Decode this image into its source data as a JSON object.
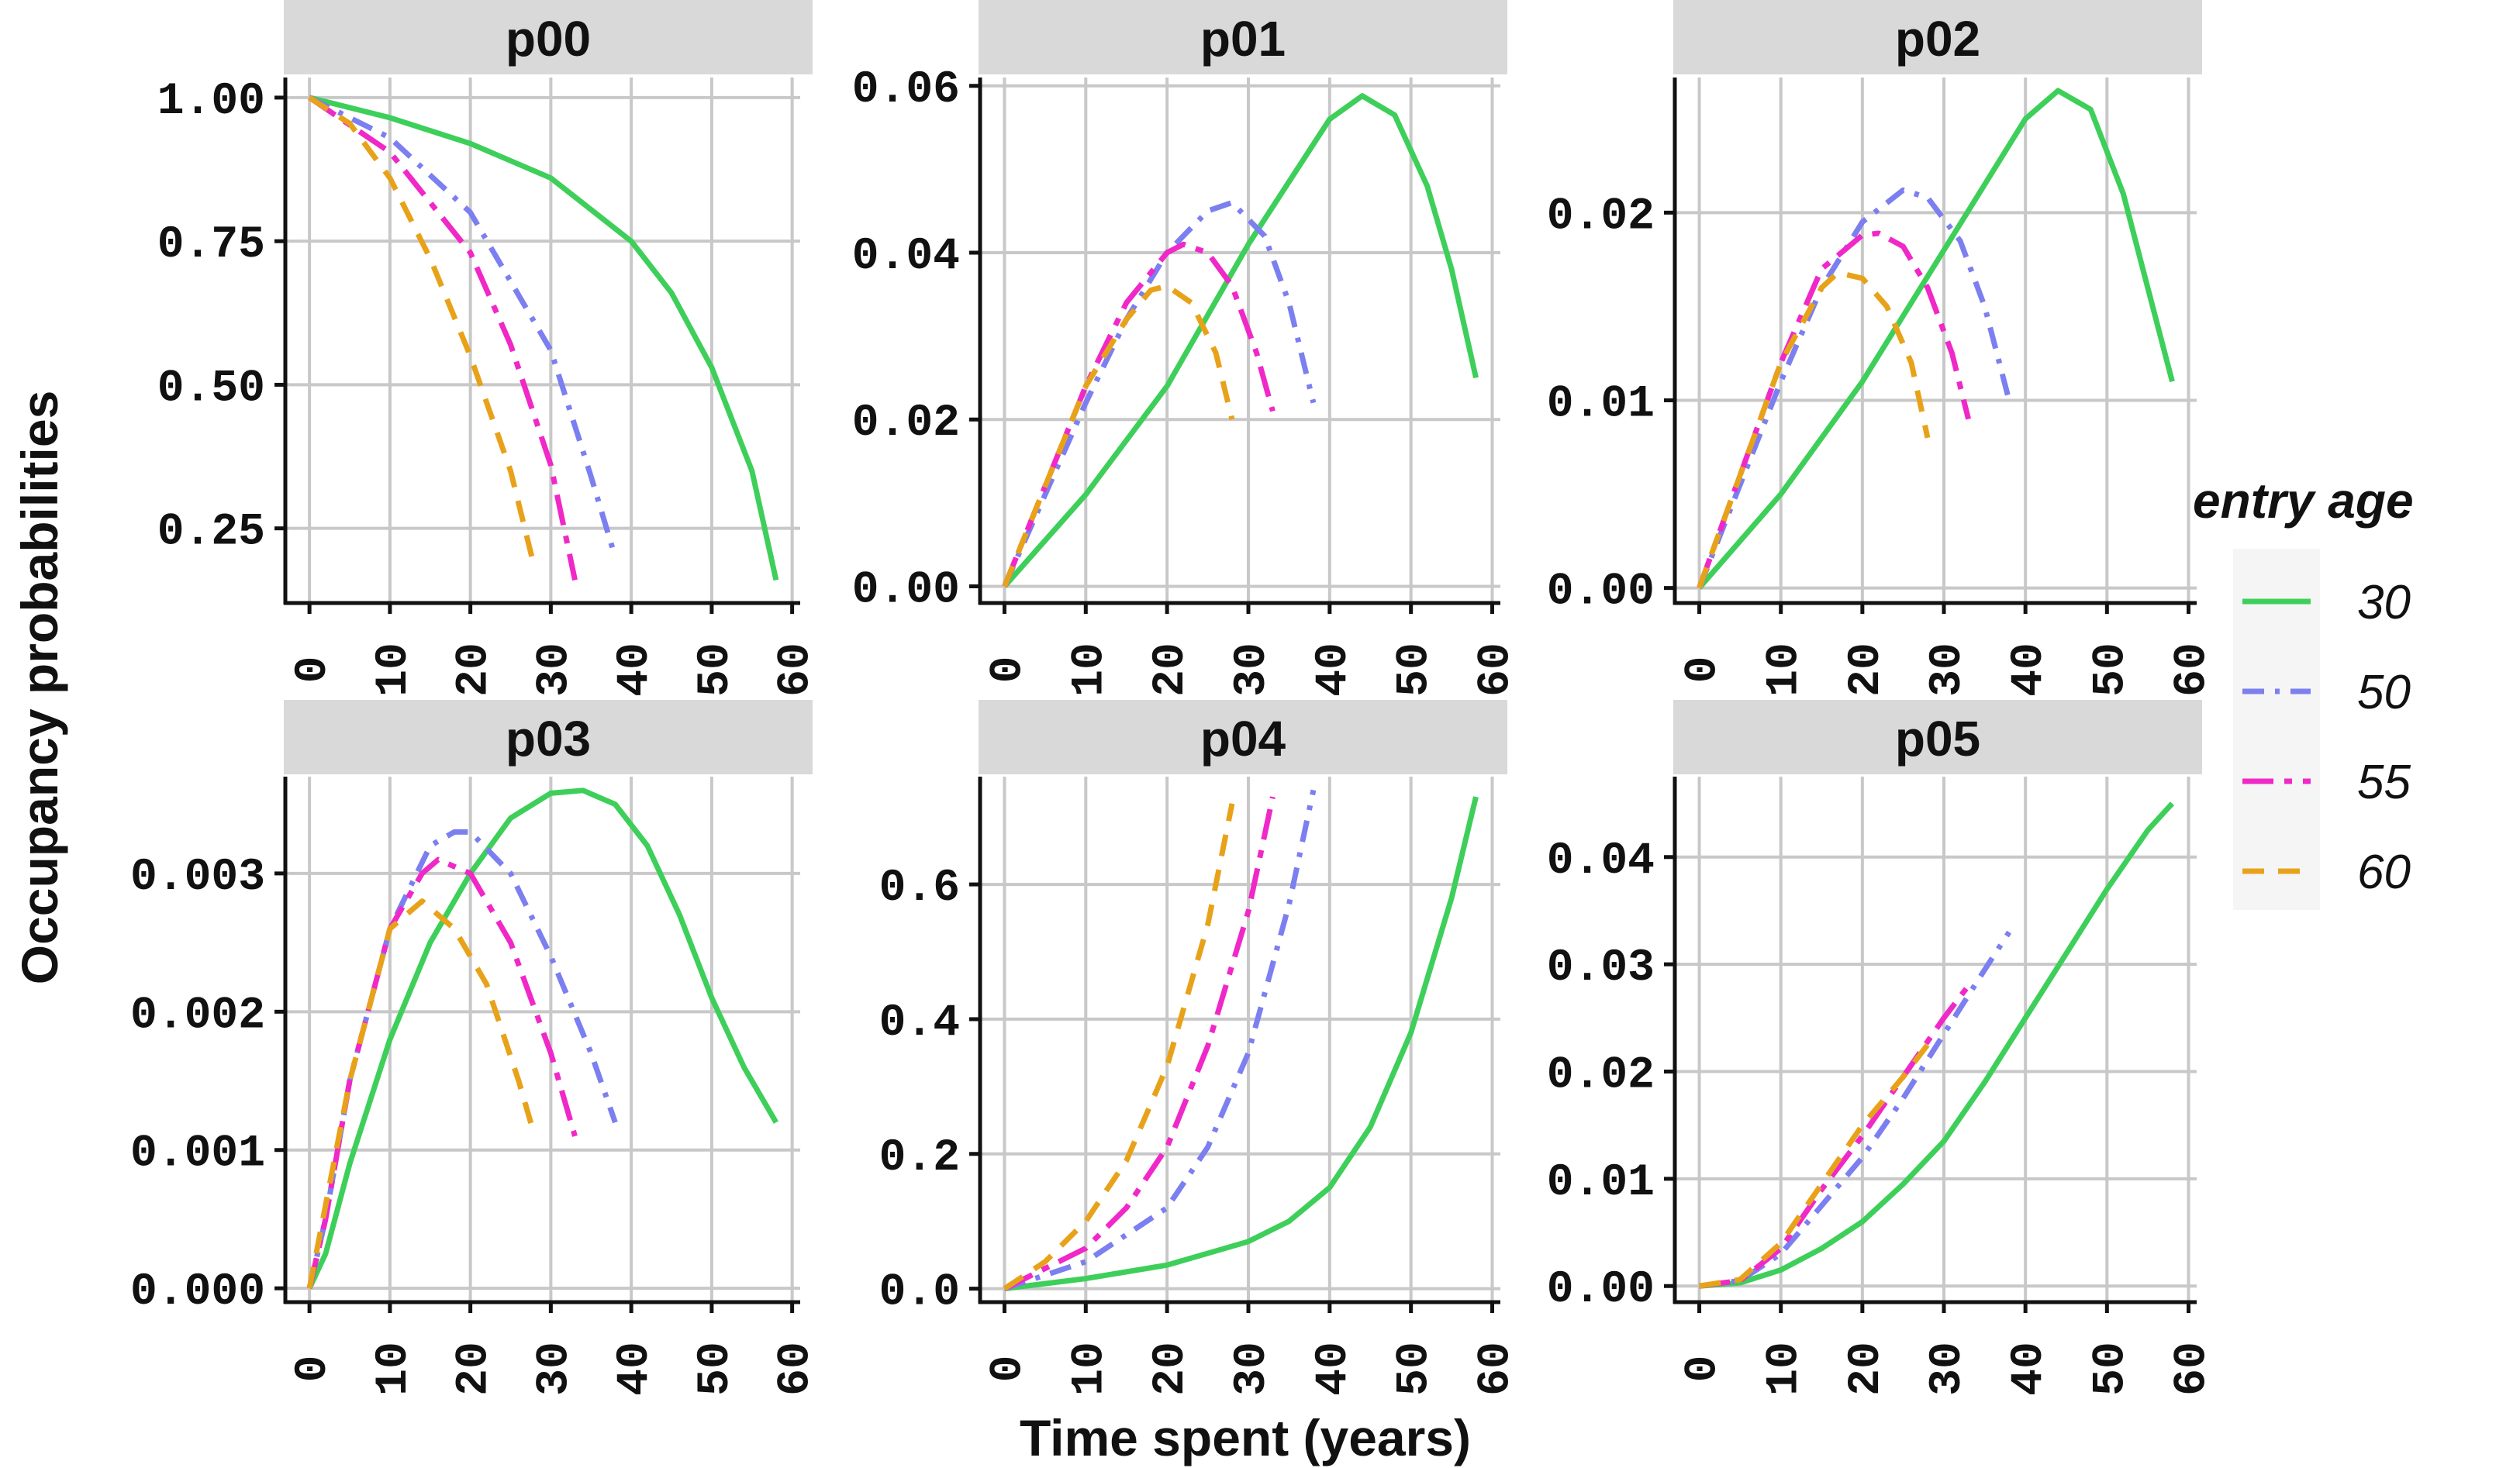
{
  "chart_data": {
    "type": "line",
    "ylabel": "Occupancy probabilities",
    "xlabel": "Time spent (years)",
    "legend": {
      "title": "entry age",
      "placement": "right",
      "entries": [
        {
          "label": "30",
          "color": "#3ecf5a",
          "dash": "solid"
        },
        {
          "label": "50",
          "color": "#7b7ff0",
          "dash": "dotdash"
        },
        {
          "label": "55",
          "color": "#f028c8",
          "dash": "longdash-dot"
        },
        {
          "label": "60",
          "color": "#e8a21a",
          "dash": "dashed"
        }
      ]
    },
    "facets": [
      {
        "name": "p00",
        "xlim": [
          -3,
          61
        ],
        "ylim": [
          0.12,
          1.035
        ],
        "x_ticks": [
          0,
          10,
          20,
          30,
          40,
          50,
          60
        ],
        "y_ticks": [
          0.25,
          0.5,
          0.75,
          1.0
        ],
        "y_tick_labels": [
          "0.25",
          "0.50",
          "0.75",
          "1.00"
        ],
        "series": [
          {
            "name": "30",
            "x": [
              0,
              10,
              20,
              30,
              40,
              45,
              50,
              55,
              58
            ],
            "y": [
              1.0,
              0.965,
              0.92,
              0.86,
              0.75,
              0.66,
              0.53,
              0.35,
              0.16
            ]
          },
          {
            "name": "50",
            "x": [
              0,
              10,
              20,
              30,
              35,
              38
            ],
            "y": [
              1.0,
              0.93,
              0.8,
              0.56,
              0.34,
              0.2
            ]
          },
          {
            "name": "55",
            "x": [
              0,
              10,
              20,
              25,
              30,
              33
            ],
            "y": [
              1.0,
              0.905,
              0.73,
              0.57,
              0.36,
              0.16
            ]
          },
          {
            "name": "60",
            "x": [
              0,
              5,
              10,
              15,
              20,
              25,
              28
            ],
            "y": [
              1.0,
              0.955,
              0.86,
              0.72,
              0.55,
              0.35,
              0.18
            ]
          }
        ]
      },
      {
        "name": "p01",
        "xlim": [
          -3,
          61
        ],
        "ylim": [
          -0.002,
          0.061
        ],
        "x_ticks": [
          0,
          10,
          20,
          30,
          40,
          50,
          60
        ],
        "y_ticks": [
          0.0,
          0.02,
          0.04,
          0.06
        ],
        "y_tick_labels": [
          "0.00",
          "0.02",
          "0.04",
          "0.06"
        ],
        "series": [
          {
            "name": "30",
            "x": [
              0,
              10,
              20,
              30,
              40,
              44,
              48,
              52,
              55,
              58
            ],
            "y": [
              0,
              0.011,
              0.024,
              0.041,
              0.056,
              0.0588,
              0.0565,
              0.048,
              0.038,
              0.025
            ]
          },
          {
            "name": "50",
            "x": [
              0,
              5,
              10,
              15,
              20,
              25,
              28,
              32,
              35,
              38
            ],
            "y": [
              0,
              0.011,
              0.022,
              0.032,
              0.04,
              0.045,
              0.046,
              0.042,
              0.034,
              0.022
            ]
          },
          {
            "name": "55",
            "x": [
              0,
              5,
              10,
              15,
              20,
              22,
              25,
              28,
              31,
              33
            ],
            "y": [
              0,
              0.012,
              0.024,
              0.034,
              0.04,
              0.041,
              0.04,
              0.036,
              0.028,
              0.021
            ]
          },
          {
            "name": "60",
            "x": [
              0,
              5,
              10,
              15,
              18,
              20,
              23,
              26,
              28
            ],
            "y": [
              0,
              0.012,
              0.024,
              0.032,
              0.0355,
              0.036,
              0.034,
              0.028,
              0.02
            ]
          }
        ]
      },
      {
        "name": "p02",
        "xlim": [
          -3,
          61
        ],
        "ylim": [
          -0.0008,
          0.0272
        ],
        "x_ticks": [
          0,
          10,
          20,
          30,
          40,
          50,
          60
        ],
        "y_ticks": [
          0.0,
          0.01,
          0.02
        ],
        "y_tick_labels": [
          "0.00",
          "0.01",
          "0.02"
        ],
        "series": [
          {
            "name": "30",
            "x": [
              0,
              10,
              20,
              30,
              40,
              44,
              48,
              52,
              55,
              58
            ],
            "y": [
              0,
              0.005,
              0.011,
              0.018,
              0.025,
              0.0265,
              0.0255,
              0.021,
              0.016,
              0.011
            ]
          },
          {
            "name": "50",
            "x": [
              0,
              5,
              10,
              15,
              20,
              25,
              28,
              32,
              35,
              38
            ],
            "y": [
              0,
              0.0055,
              0.011,
              0.016,
              0.0195,
              0.0212,
              0.0208,
              0.0185,
              0.015,
              0.01
            ]
          },
          {
            "name": "55",
            "x": [
              0,
              5,
              10,
              15,
              20,
              22,
              25,
              28,
              31,
              33
            ],
            "y": [
              0,
              0.006,
              0.012,
              0.017,
              0.0188,
              0.0189,
              0.0182,
              0.016,
              0.0125,
              0.009
            ]
          },
          {
            "name": "60",
            "x": [
              0,
              5,
              10,
              15,
              17,
              20,
              23,
              26,
              28
            ],
            "y": [
              0,
              0.006,
              0.012,
              0.016,
              0.0168,
              0.0165,
              0.015,
              0.012,
              0.008
            ]
          }
        ]
      },
      {
        "name": "p03",
        "xlim": [
          -3,
          61
        ],
        "ylim": [
          -0.0001,
          0.0037
        ],
        "x_ticks": [
          0,
          10,
          20,
          30,
          40,
          50,
          60
        ],
        "y_ticks": [
          0.0,
          0.001,
          0.002,
          0.003
        ],
        "y_tick_labels": [
          "0.000",
          "0.001",
          "0.002",
          "0.003"
        ],
        "series": [
          {
            "name": "30",
            "x": [
              0,
              2,
              5,
              10,
              15,
              20,
              25,
              30,
              34,
              38,
              42,
              46,
              50,
              54,
              58
            ],
            "y": [
              0,
              0.00025,
              0.0009,
              0.0018,
              0.0025,
              0.003,
              0.0034,
              0.00358,
              0.0036,
              0.0035,
              0.0032,
              0.0027,
              0.0021,
              0.0016,
              0.0012
            ]
          },
          {
            "name": "50",
            "x": [
              0,
              2,
              5,
              10,
              15,
              18,
              20,
              25,
              30,
              35,
              38
            ],
            "y": [
              0,
              0.0005,
              0.0015,
              0.0026,
              0.0032,
              0.0033,
              0.0033,
              0.003,
              0.0024,
              0.0017,
              0.0012
            ]
          },
          {
            "name": "55",
            "x": [
              0,
              2,
              5,
              10,
              14,
              16,
              20,
              25,
              30,
              33
            ],
            "y": [
              0,
              0.0005,
              0.0015,
              0.0026,
              0.003,
              0.0031,
              0.003,
              0.0025,
              0.0017,
              0.0011
            ]
          },
          {
            "name": "60",
            "x": [
              0,
              2,
              5,
              10,
              12,
              14,
              18,
              22,
              26,
              28
            ],
            "y": [
              0,
              0.0006,
              0.0015,
              0.0026,
              0.0027,
              0.0028,
              0.0026,
              0.0022,
              0.0015,
              0.0011
            ]
          }
        ]
      },
      {
        "name": "p04",
        "xlim": [
          -3,
          61
        ],
        "ylim": [
          -0.02,
          0.76
        ],
        "x_ticks": [
          0,
          10,
          20,
          30,
          40,
          50,
          60
        ],
        "y_ticks": [
          0.0,
          0.2,
          0.4,
          0.6
        ],
        "y_tick_labels": [
          "0.0",
          "0.2",
          "0.4",
          "0.6"
        ],
        "series": [
          {
            "name": "30",
            "x": [
              0,
              10,
              20,
              30,
              35,
              40,
              45,
              50,
              55,
              58
            ],
            "y": [
              0,
              0.015,
              0.035,
              0.07,
              0.1,
              0.15,
              0.24,
              0.38,
              0.58,
              0.73
            ]
          },
          {
            "name": "50",
            "x": [
              0,
              10,
              20,
              25,
              30,
              35,
              38
            ],
            "y": [
              0,
              0.04,
              0.12,
              0.21,
              0.35,
              0.57,
              0.74
            ]
          },
          {
            "name": "55",
            "x": [
              0,
              10,
              15,
              20,
              25,
              30,
              33
            ],
            "y": [
              0,
              0.06,
              0.12,
              0.21,
              0.36,
              0.56,
              0.73
            ]
          },
          {
            "name": "60",
            "x": [
              0,
              5,
              10,
              15,
              20,
              25,
              28
            ],
            "y": [
              0,
              0.04,
              0.1,
              0.19,
              0.33,
              0.54,
              0.72
            ]
          }
        ]
      },
      {
        "name": "p05",
        "xlim": [
          -3,
          61
        ],
        "ylim": [
          -0.0015,
          0.0475
        ],
        "x_ticks": [
          0,
          10,
          20,
          30,
          40,
          50,
          60
        ],
        "y_ticks": [
          0.0,
          0.01,
          0.02,
          0.03,
          0.04
        ],
        "y_tick_labels": [
          "0.00",
          "0.01",
          "0.02",
          "0.03",
          "0.04"
        ],
        "series": [
          {
            "name": "30",
            "x": [
              0,
              5,
              10,
              15,
              20,
              25,
              30,
              35,
              40,
              45,
              50,
              55,
              58
            ],
            "y": [
              0,
              0.0003,
              0.0015,
              0.0035,
              0.006,
              0.0095,
              0.0135,
              0.019,
              0.025,
              0.031,
              0.037,
              0.0425,
              0.045
            ]
          },
          {
            "name": "50",
            "x": [
              0,
              5,
              10,
              15,
              20,
              25,
              30,
              35,
              38
            ],
            "y": [
              0,
              0.0005,
              0.003,
              0.0075,
              0.012,
              0.0175,
              0.0235,
              0.0295,
              0.033
            ]
          },
          {
            "name": "55",
            "x": [
              0,
              5,
              10,
              15,
              20,
              25,
              30,
              33
            ],
            "y": [
              0,
              0.0005,
              0.0035,
              0.009,
              0.014,
              0.0195,
              0.025,
              0.028
            ]
          },
          {
            "name": "60",
            "x": [
              0,
              5,
              10,
              15,
              20,
              25,
              28
            ],
            "y": [
              0,
              0.0006,
              0.004,
              0.0095,
              0.015,
              0.0195,
              0.0225
            ]
          }
        ]
      }
    ]
  }
}
